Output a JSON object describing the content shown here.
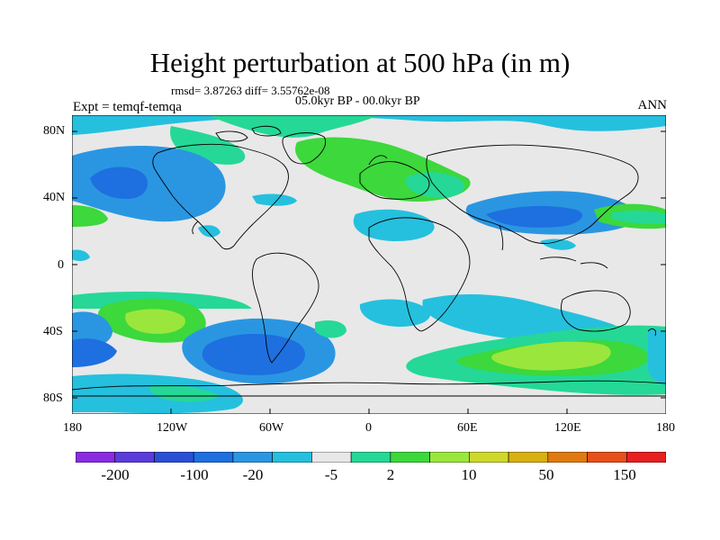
{
  "title": "Height perturbation at 500 hPa (in m)",
  "stats": "rmsd= 3.87263 diff= 3.55762e-08",
  "period": "05.0kyr BP - 00.0kyr BP",
  "experiment": "Expt = temqf-temqa",
  "season": "ANN",
  "lat_ticks": [
    "80N",
    "40N",
    "0",
    "40S",
    "80S"
  ],
  "lon_ticks": [
    "180",
    "120W",
    "60W",
    "0",
    "60E",
    "120E",
    "180"
  ],
  "colorbar": {
    "labels": [
      "-200",
      "-100",
      "-20",
      "-5",
      "2",
      "10",
      "50",
      "150"
    ],
    "colors": [
      "#8a2be2",
      "#5a3cdb",
      "#2a4fd6",
      "#1e6fe0",
      "#2a96e2",
      "#25c0de",
      "#e8e8e8",
      "#25d897",
      "#3cd83c",
      "#9be63c",
      "#cfd82a",
      "#d8b010",
      "#e07a10",
      "#e8501a",
      "#e82020"
    ]
  },
  "map": {
    "background": "#e8e8e8",
    "coastline": "#000000"
  }
}
